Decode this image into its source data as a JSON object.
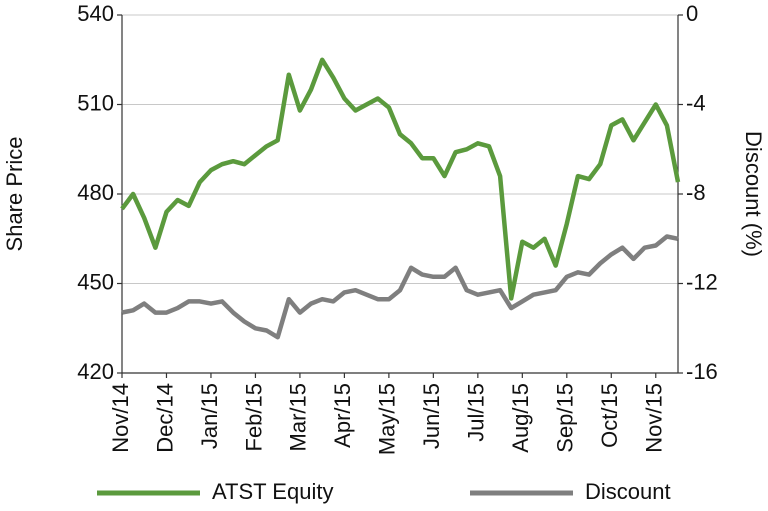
{
  "chart_data": {
    "type": "line",
    "categories": [
      "Nov/14",
      null,
      null,
      null,
      "Dec/14",
      null,
      null,
      null,
      "Jan/15",
      null,
      null,
      null,
      "Feb/15",
      null,
      null,
      null,
      "Mar/15",
      null,
      null,
      null,
      "Apr/15",
      null,
      null,
      null,
      "May/15",
      null,
      null,
      null,
      "Jun/15",
      null,
      null,
      null,
      "Jul/15",
      null,
      null,
      null,
      "Aug/15",
      null,
      null,
      null,
      "Sep/15",
      null,
      null,
      null,
      "Oct/15",
      null,
      null,
      null,
      "Nov/15",
      null,
      null
    ],
    "series": [
      {
        "name": "ATST Equity",
        "color": "#5b9a3d",
        "values": [
          475,
          480,
          472,
          462,
          474,
          478,
          476,
          484,
          488,
          490,
          491,
          490,
          493,
          496,
          498,
          520,
          508,
          515,
          525,
          519,
          512,
          508,
          510,
          512,
          509,
          500,
          497,
          492,
          492,
          486,
          494,
          495,
          497,
          496,
          486,
          445,
          464,
          462,
          465,
          456,
          470,
          486,
          485,
          490,
          503,
          505,
          498,
          504,
          510,
          503,
          484
        ]
      },
      {
        "name": "Discount",
        "color": "#7f7f7f",
        "axis": "y2",
        "values": [
          -13.3,
          -13.2,
          -12.9,
          -13.3,
          -13.3,
          -13.1,
          -12.8,
          -12.8,
          -12.9,
          -12.8,
          -13.3,
          -13.7,
          -14.0,
          -14.1,
          -14.4,
          -12.7,
          -13.3,
          -12.9,
          -12.7,
          -12.8,
          -12.4,
          -12.3,
          -12.5,
          -12.7,
          -12.7,
          -12.3,
          -11.3,
          -11.6,
          -11.7,
          -11.7,
          -11.3,
          -12.3,
          -12.5,
          -12.4,
          -12.3,
          -13.1,
          -12.8,
          -12.5,
          -12.4,
          -12.3,
          -11.7,
          -11.5,
          -11.6,
          -11.1,
          -10.7,
          -10.4,
          -10.9,
          -10.4,
          -10.3,
          -9.9,
          -10.0
        ]
      }
    ],
    "ylabel": "Share Price",
    "y2label": "Discount (%)",
    "ylim": [
      420,
      540
    ],
    "yticks": [
      420,
      450,
      480,
      510,
      540
    ],
    "y2lim": [
      -16,
      0
    ],
    "y2ticks": [
      -16,
      -12,
      -8,
      -4,
      0
    ],
    "grid": true,
    "legend": "bottom"
  }
}
